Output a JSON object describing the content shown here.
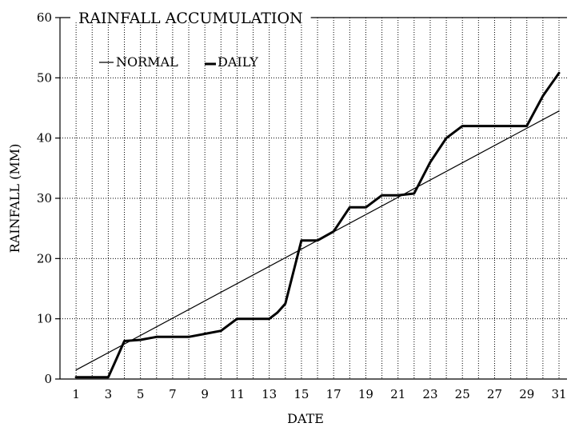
{
  "chart_data": {
    "type": "line",
    "title": "RAINFALL ACCUMULATION",
    "xlabel": "DATE",
    "ylabel": "RAINFALL (MM)",
    "xlim": [
      0,
      31
    ],
    "ylim": [
      0,
      60
    ],
    "x_ticks": [
      1,
      3,
      5,
      7,
      9,
      11,
      13,
      15,
      17,
      19,
      21,
      23,
      25,
      27,
      29,
      31
    ],
    "y_ticks": [
      0,
      10,
      20,
      30,
      40,
      50,
      60
    ],
    "grid": true,
    "legend_position": "top-left",
    "series": [
      {
        "name": "NORMAL",
        "color": "#000000",
        "x": [
          1,
          31
        ],
        "y": [
          1.5,
          44.5
        ]
      },
      {
        "name": "DAILY",
        "color": "#000000",
        "x": [
          1,
          2,
          3,
          3.5,
          4,
          5,
          6,
          7,
          8,
          9,
          10,
          11,
          12,
          13,
          13.5,
          14,
          15,
          16,
          17,
          18,
          19,
          20,
          21,
          22,
          23,
          24,
          25,
          26,
          27,
          28,
          29,
          30,
          31
        ],
        "y": [
          0.3,
          0.3,
          0.3,
          3.3,
          6.3,
          6.5,
          7,
          7,
          7,
          7.5,
          8,
          10,
          10,
          10,
          11,
          12.5,
          23,
          23,
          24.5,
          28.5,
          28.5,
          30.5,
          30.5,
          30.8,
          36,
          40,
          42,
          42,
          42,
          42,
          42,
          47,
          50.8
        ]
      }
    ]
  }
}
